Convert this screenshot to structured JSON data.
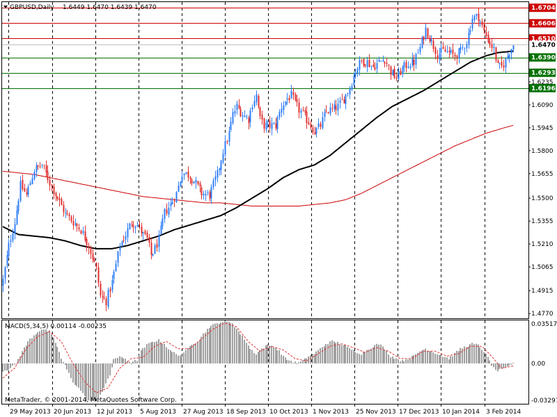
{
  "header": {
    "symbol_label": "GBPUSD,Daily",
    "ohlc_label": "1.6449 1.6470 1.6439 1.6470"
  },
  "macd_panel": {
    "label": "MACD(5,34,5) 0.00114 -0.00235",
    "copyright": "MetaTrader, © 2001-2014, MetaQuotes Software Corp.",
    "axis_labels": [
      "0.03517",
      "0.00",
      "-0.03297"
    ]
  },
  "colors": {
    "bull": "#2f7ef6",
    "bear": "#e03030",
    "ma_fast": "#000000",
    "ma_slow": "#cc0000",
    "resistance": "#cc0000",
    "support": "#007000",
    "macd_hist": "#a0a0a0",
    "macd_signal": "#e03030",
    "grid": "#000000"
  },
  "chart_data": [
    {
      "type": "candlestick",
      "title": "GBPUSD,Daily",
      "y_axis_labels": [
        "1.6235",
        "1.6090",
        "1.5945",
        "1.5800",
        "1.5655",
        "1.5500",
        "1.5355",
        "1.5210",
        "1.5065",
        "1.4915",
        "1.4770"
      ],
      "ylim": [
        1.474,
        1.674
      ],
      "x_labels": [
        "29 May 2013",
        "20 Jun 2013",
        "12 Jul 2013",
        "5 Aug 2013",
        "27 Aug 2013",
        "18 Sep 2013",
        "10 Oct 2013",
        "1 Nov 2013",
        "25 Nov 2013",
        "17 Dec 2013",
        "10 Jan 2014",
        "3 Feb 2014"
      ],
      "current_price": {
        "value": 1.647,
        "label": "1.6470"
      },
      "horizontal_levels": [
        {
          "value": 1.6704,
          "label": "1.6704",
          "kind": "resistance"
        },
        {
          "value": 1.6606,
          "label": "1.6606",
          "kind": "resistance"
        },
        {
          "value": 1.651,
          "label": "1.6510",
          "kind": "resistance"
        },
        {
          "value": 1.639,
          "label": "1.6390",
          "kind": "support"
        },
        {
          "value": 1.6293,
          "label": "1.6293",
          "kind": "support"
        },
        {
          "value": 1.6196,
          "label": "1.6196",
          "kind": "support"
        }
      ],
      "close_path": [
        [
          0,
          1.498
        ],
        [
          3,
          1.52
        ],
        [
          6,
          1.535
        ],
        [
          9,
          1.558
        ],
        [
          12,
          1.552
        ],
        [
          16,
          1.568
        ],
        [
          20,
          1.571
        ],
        [
          24,
          1.56
        ],
        [
          28,
          1.55
        ],
        [
          32,
          1.54
        ],
        [
          36,
          1.535
        ],
        [
          40,
          1.53
        ],
        [
          44,
          1.52
        ],
        [
          48,
          1.505
        ],
        [
          50,
          1.488
        ],
        [
          53,
          1.485
        ],
        [
          56,
          1.497
        ],
        [
          58,
          1.508
        ],
        [
          60,
          1.52
        ],
        [
          63,
          1.527
        ],
        [
          66,
          1.535
        ],
        [
          69,
          1.533
        ],
        [
          72,
          1.527
        ],
        [
          74,
          1.524
        ],
        [
          76,
          1.514
        ],
        [
          78,
          1.518
        ],
        [
          80,
          1.524
        ],
        [
          83,
          1.541
        ],
        [
          86,
          1.546
        ],
        [
          89,
          1.553
        ],
        [
          92,
          1.566
        ],
        [
          95,
          1.565
        ],
        [
          98,
          1.561
        ],
        [
          102,
          1.553
        ],
        [
          106,
          1.552
        ],
        [
          110,
          1.565
        ],
        [
          113,
          1.58
        ],
        [
          116,
          1.591
        ],
        [
          118,
          1.603
        ],
        [
          120,
          1.608
        ],
        [
          123,
          1.603
        ],
        [
          126,
          1.6
        ],
        [
          128,
          1.61
        ],
        [
          130,
          1.615
        ],
        [
          132,
          1.6
        ],
        [
          134,
          1.596
        ],
        [
          137,
          1.596
        ],
        [
          140,
          1.596
        ],
        [
          143,
          1.608
        ],
        [
          146,
          1.613
        ],
        [
          148,
          1.615
        ],
        [
          150,
          1.61
        ],
        [
          152,
          1.606
        ],
        [
          154,
          1.603
        ],
        [
          157,
          1.598
        ],
        [
          160,
          1.592
        ],
        [
          163,
          1.596
        ],
        [
          166,
          1.605
        ],
        [
          169,
          1.606
        ],
        [
          172,
          1.608
        ],
        [
          175,
          1.613
        ],
        [
          178,
          1.62
        ],
        [
          181,
          1.631
        ],
        [
          184,
          1.637
        ],
        [
          187,
          1.636
        ],
        [
          190,
          1.633
        ],
        [
          193,
          1.636
        ],
        [
          196,
          1.638
        ],
        [
          199,
          1.63
        ],
        [
          202,
          1.626
        ],
        [
          205,
          1.632
        ],
        [
          208,
          1.635
        ],
        [
          211,
          1.636
        ],
        [
          214,
          1.645
        ],
        [
          217,
          1.657
        ],
        [
          220,
          1.649
        ],
        [
          223,
          1.641
        ],
        [
          226,
          1.643
        ],
        [
          229,
          1.642
        ],
        [
          232,
          1.64
        ],
        [
          235,
          1.643
        ],
        [
          238,
          1.649
        ],
        [
          241,
          1.664
        ],
        [
          244,
          1.665
        ],
        [
          247,
          1.655
        ],
        [
          250,
          1.648
        ],
        [
          252,
          1.644
        ],
        [
          254,
          1.633
        ],
        [
          256,
          1.633
        ],
        [
          258,
          1.637
        ],
        [
          260,
          1.643
        ],
        [
          262,
          1.647
        ]
      ],
      "ma_fast_path": [
        [
          0,
          1.532
        ],
        [
          8,
          1.527
        ],
        [
          16,
          1.526
        ],
        [
          24,
          1.525
        ],
        [
          32,
          1.523
        ],
        [
          40,
          1.52
        ],
        [
          48,
          1.518
        ],
        [
          56,
          1.518
        ],
        [
          64,
          1.52
        ],
        [
          72,
          1.523
        ],
        [
          80,
          1.526
        ],
        [
          88,
          1.53
        ],
        [
          96,
          1.533
        ],
        [
          104,
          1.536
        ],
        [
          112,
          1.539
        ],
        [
          120,
          1.544
        ],
        [
          128,
          1.55
        ],
        [
          136,
          1.556
        ],
        [
          144,
          1.563
        ],
        [
          152,
          1.568
        ],
        [
          160,
          1.571
        ],
        [
          168,
          1.577
        ],
        [
          176,
          1.585
        ],
        [
          184,
          1.593
        ],
        [
          192,
          1.601
        ],
        [
          200,
          1.608
        ],
        [
          208,
          1.613
        ],
        [
          216,
          1.618
        ],
        [
          224,
          1.624
        ],
        [
          232,
          1.63
        ],
        [
          240,
          1.636
        ],
        [
          248,
          1.64
        ],
        [
          254,
          1.642
        ],
        [
          262,
          1.643
        ]
      ],
      "ma_slow_path": [
        [
          0,
          1.567
        ],
        [
          8,
          1.566
        ],
        [
          16,
          1.565
        ],
        [
          24,
          1.563
        ],
        [
          32,
          1.561
        ],
        [
          40,
          1.559
        ],
        [
          48,
          1.557
        ],
        [
          56,
          1.555
        ],
        [
          64,
          1.553
        ],
        [
          72,
          1.551
        ],
        [
          80,
          1.55
        ],
        [
          88,
          1.549
        ],
        [
          96,
          1.548
        ],
        [
          104,
          1.547
        ],
        [
          112,
          1.547
        ],
        [
          120,
          1.546
        ],
        [
          128,
          1.545
        ],
        [
          136,
          1.545
        ],
        [
          144,
          1.545
        ],
        [
          152,
          1.545
        ],
        [
          160,
          1.546
        ],
        [
          168,
          1.547
        ],
        [
          176,
          1.549
        ],
        [
          184,
          1.553
        ],
        [
          192,
          1.558
        ],
        [
          200,
          1.563
        ],
        [
          208,
          1.568
        ],
        [
          216,
          1.573
        ],
        [
          224,
          1.578
        ],
        [
          232,
          1.583
        ],
        [
          240,
          1.587
        ],
        [
          248,
          1.591
        ],
        [
          256,
          1.594
        ],
        [
          262,
          1.596
        ]
      ],
      "bar_count": 263
    },
    {
      "type": "bar",
      "title": "MACD(5,34,5) 0.00114 -0.00235",
      "ylim": [
        -0.033,
        0.0352
      ],
      "y_axis_labels": [
        "0.03517",
        "0.00",
        "-0.03297"
      ],
      "histogram_path": [
        [
          0,
          -0.006
        ],
        [
          4,
          -0.004
        ],
        [
          7,
          0.0
        ],
        [
          10,
          0.01
        ],
        [
          14,
          0.02
        ],
        [
          18,
          0.026
        ],
        [
          20,
          0.028
        ],
        [
          24,
          0.026
        ],
        [
          28,
          0.014
        ],
        [
          30,
          0.004
        ],
        [
          33,
          -0.005
        ],
        [
          36,
          -0.015
        ],
        [
          40,
          -0.022
        ],
        [
          43,
          -0.03
        ],
        [
          46,
          -0.031
        ],
        [
          49,
          -0.028
        ],
        [
          52,
          -0.02
        ],
        [
          55,
          -0.01
        ],
        [
          57,
          0.004
        ],
        [
          60,
          0.005
        ],
        [
          63,
          0.004
        ],
        [
          66,
          0.0
        ],
        [
          69,
          0.003
        ],
        [
          71,
          0.01
        ],
        [
          74,
          0.015
        ],
        [
          77,
          0.018
        ],
        [
          80,
          0.019
        ],
        [
          83,
          0.016
        ],
        [
          86,
          0.01
        ],
        [
          89,
          0.008
        ],
        [
          92,
          0.006
        ],
        [
          94,
          0.01
        ],
        [
          97,
          0.016
        ],
        [
          100,
          0.018
        ],
        [
          103,
          0.024
        ],
        [
          106,
          0.03
        ],
        [
          109,
          0.032
        ],
        [
          112,
          0.034
        ],
        [
          115,
          0.034
        ],
        [
          118,
          0.033
        ],
        [
          121,
          0.026
        ],
        [
          124,
          0.02
        ],
        [
          127,
          0.012
        ],
        [
          130,
          0.008
        ],
        [
          133,
          0.012
        ],
        [
          136,
          0.015
        ],
        [
          139,
          0.014
        ],
        [
          142,
          0.01
        ],
        [
          145,
          0.004
        ],
        [
          148,
          0.002
        ],
        [
          151,
          0.0
        ],
        [
          154,
          0.002
        ],
        [
          157,
          0.006
        ],
        [
          160,
          0.008
        ],
        [
          163,
          0.012
        ],
        [
          166,
          0.016
        ],
        [
          169,
          0.018
        ],
        [
          172,
          0.017
        ],
        [
          175,
          0.015
        ],
        [
          178,
          0.012
        ],
        [
          181,
          0.01
        ],
        [
          184,
          0.008
        ],
        [
          187,
          0.011
        ],
        [
          190,
          0.014
        ],
        [
          193,
          0.016
        ],
        [
          196,
          0.012
        ],
        [
          199,
          0.006
        ],
        [
          202,
          0.004
        ],
        [
          205,
          0.002
        ],
        [
          208,
          0.004
        ],
        [
          211,
          0.006
        ],
        [
          214,
          0.01
        ],
        [
          217,
          0.012
        ],
        [
          220,
          0.01
        ],
        [
          223,
          0.008
        ],
        [
          226,
          0.006
        ],
        [
          229,
          0.004
        ],
        [
          232,
          0.008
        ],
        [
          235,
          0.012
        ],
        [
          238,
          0.014
        ],
        [
          241,
          0.016
        ],
        [
          244,
          0.015
        ],
        [
          247,
          0.01
        ],
        [
          250,
          0.002
        ],
        [
          252,
          -0.004
        ],
        [
          254,
          -0.006
        ],
        [
          256,
          -0.005
        ],
        [
          258,
          -0.004
        ],
        [
          260,
          -0.002
        ],
        [
          262,
          0.001
        ]
      ],
      "signal_path": [
        [
          0,
          -0.012
        ],
        [
          6,
          -0.004
        ],
        [
          12,
          0.012
        ],
        [
          18,
          0.022
        ],
        [
          24,
          0.026
        ],
        [
          30,
          0.018
        ],
        [
          36,
          0.0
        ],
        [
          42,
          -0.015
        ],
        [
          48,
          -0.024
        ],
        [
          54,
          -0.02
        ],
        [
          60,
          -0.004
        ],
        [
          66,
          0.004
        ],
        [
          72,
          0.005
        ],
        [
          78,
          0.014
        ],
        [
          84,
          0.018
        ],
        [
          90,
          0.012
        ],
        [
          96,
          0.012
        ],
        [
          102,
          0.02
        ],
        [
          108,
          0.028
        ],
        [
          114,
          0.033
        ],
        [
          120,
          0.03
        ],
        [
          126,
          0.018
        ],
        [
          132,
          0.01
        ],
        [
          138,
          0.014
        ],
        [
          144,
          0.011
        ],
        [
          150,
          0.004
        ],
        [
          156,
          0.002
        ],
        [
          162,
          0.008
        ],
        [
          168,
          0.014
        ],
        [
          174,
          0.016
        ],
        [
          180,
          0.013
        ],
        [
          186,
          0.009
        ],
        [
          192,
          0.013
        ],
        [
          198,
          0.01
        ],
        [
          204,
          0.004
        ],
        [
          210,
          0.004
        ],
        [
          216,
          0.01
        ],
        [
          222,
          0.01
        ],
        [
          228,
          0.006
        ],
        [
          234,
          0.008
        ],
        [
          240,
          0.014
        ],
        [
          246,
          0.014
        ],
        [
          252,
          0.004
        ],
        [
          256,
          -0.004
        ],
        [
          262,
          -0.002
        ]
      ]
    }
  ]
}
